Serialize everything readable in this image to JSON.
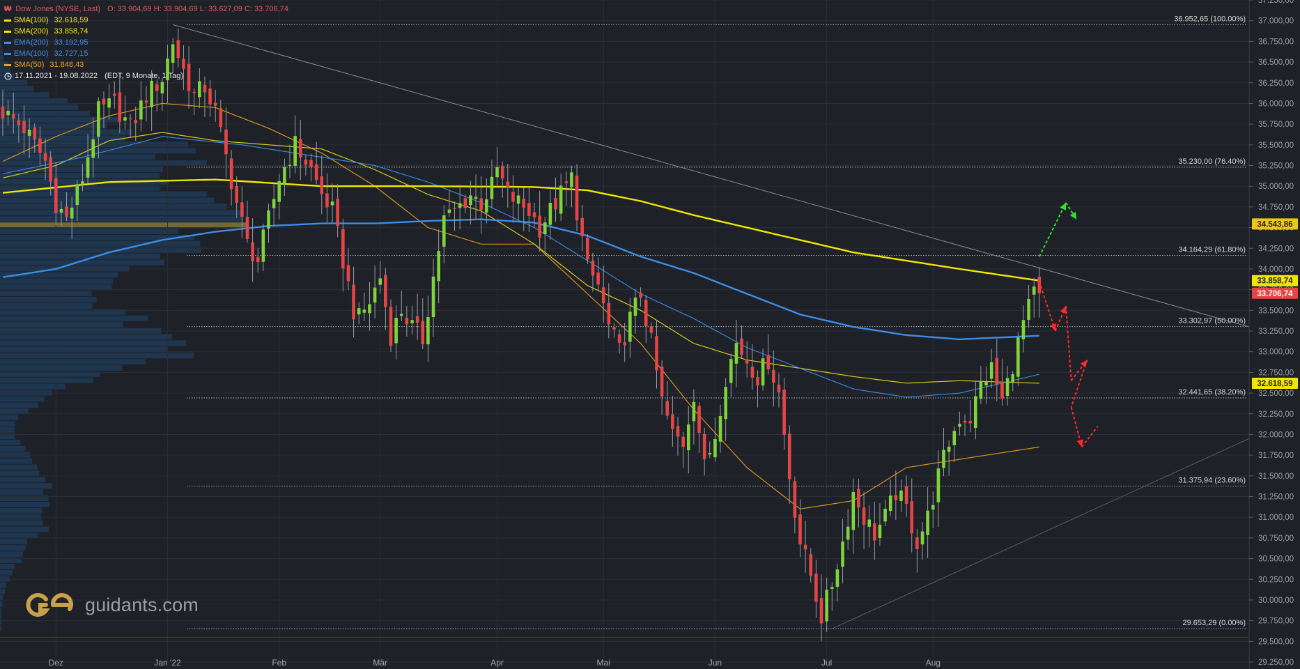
{
  "legend": {
    "title": "Dow Jones (NYSE, Last)",
    "title_icon": "₩",
    "ohlc": "O: 33.904,69  H: 33.904,69  L: 33.627,09  C: 33.706,74",
    "indicators": [
      {
        "label": "SMA(100)",
        "value": "32.618,59",
        "color": "#f2e600"
      },
      {
        "label": "SMA(200)",
        "value": "33.858,74",
        "color": "#f2e600"
      },
      {
        "label": "EMA(200)",
        "value": "33.192,95",
        "color": "#3a8ee6"
      },
      {
        "label": "EMA(100)",
        "value": "32.727,15",
        "color": "#3a8ee6"
      },
      {
        "label": "SMA(50)",
        "value": "31.848,43",
        "color": "#e6a21e"
      }
    ],
    "range_icon": "clock-icon",
    "range": "17.11.2021 - 19.08.2022",
    "range_note": "(EDT, 9 Monate, 1 Tag)"
  },
  "brand": {
    "name": "guidants.com",
    "icon": "guidants-logo-icon"
  },
  "chart_data": {
    "type": "candlestick",
    "x_range": [
      "2021-11-17",
      "2022-08-19"
    ],
    "ylim": [
      29250,
      37250
    ],
    "y_ticks": [
      29250,
      29500,
      29750,
      30000,
      30250,
      30500,
      30750,
      31000,
      31250,
      31500,
      31750,
      32000,
      32250,
      32500,
      32750,
      33000,
      33250,
      33500,
      33750,
      34000,
      34250,
      34500,
      34750,
      35000,
      35250,
      35500,
      35750,
      36000,
      36250,
      36500,
      36750,
      37000,
      37250
    ],
    "y_tick_labels": [
      "29.250,00",
      "29.500,00",
      "29.750,00",
      "30.000,00",
      "30.250,00",
      "30.500,00",
      "30.750,00",
      "31.000,00",
      "31.250,00",
      "31.500,00",
      "31.750,00",
      "32.000,00",
      "32.250,00",
      "32.500,00",
      "32.750,00",
      "33.000,00",
      "33.250,00",
      "33.500,00",
      "33.750,00",
      "34.000,00",
      "34.250,00",
      "34.500,00",
      "34.750,00",
      "35.000,00",
      "35.250,00",
      "35.500,00",
      "35.750,00",
      "36.000,00",
      "36.250,00",
      "36.500,00",
      "36.750,00",
      "37.000,00",
      "37.250,00"
    ],
    "x_ticks": [
      {
        "label": "Dez",
        "index": 10
      },
      {
        "label": "Jan '22",
        "index": 31
      },
      {
        "label": "Feb",
        "index": 52
      },
      {
        "label": "Mär",
        "index": 71
      },
      {
        "label": "Apr",
        "index": 93
      },
      {
        "label": "Mai",
        "index": 113
      },
      {
        "label": "Jun",
        "index": 134
      },
      {
        "label": "Jul",
        "index": 155
      },
      {
        "label": "Aug",
        "index": 175
      }
    ],
    "candle_count": 196,
    "close_path": [
      [
        0,
        35900
      ],
      [
        4,
        35700
      ],
      [
        8,
        35300
      ],
      [
        10,
        34800
      ],
      [
        12,
        34600
      ],
      [
        15,
        35100
      ],
      [
        18,
        35900
      ],
      [
        21,
        36000
      ],
      [
        24,
        35700
      ],
      [
        27,
        36100
      ],
      [
        30,
        36300
      ],
      [
        32,
        36750
      ],
      [
        34,
        36400
      ],
      [
        36,
        36100
      ],
      [
        38,
        36200
      ],
      [
        40,
        35900
      ],
      [
        42,
        35350
      ],
      [
        44,
        34800
      ],
      [
        46,
        34300
      ],
      [
        48,
        34100
      ],
      [
        50,
        34600
      ],
      [
        52,
        35100
      ],
      [
        55,
        35500
      ],
      [
        58,
        35200
      ],
      [
        60,
        34900
      ],
      [
        62,
        34700
      ],
      [
        64,
        34100
      ],
      [
        66,
        33500
      ],
      [
        67,
        33400
      ],
      [
        69,
        33600
      ],
      [
        71,
        33900
      ],
      [
        73,
        33200
      ],
      [
        75,
        33500
      ],
      [
        77,
        33300
      ],
      [
        79,
        33150
      ],
      [
        81,
        33900
      ],
      [
        83,
        34600
      ],
      [
        85,
        34700
      ],
      [
        88,
        34900
      ],
      [
        90,
        34800
      ],
      [
        92,
        35000
      ],
      [
        93,
        35200
      ],
      [
        95,
        34900
      ],
      [
        97,
        34800
      ],
      [
        99,
        34700
      ],
      [
        101,
        34500
      ],
      [
        103,
        34700
      ],
      [
        105,
        34900
      ],
      [
        107,
        35100
      ],
      [
        108,
        34700
      ],
      [
        110,
        34000
      ],
      [
        112,
        33800
      ],
      [
        114,
        33300
      ],
      [
        116,
        33000
      ],
      [
        118,
        33400
      ],
      [
        120,
        33700
      ],
      [
        122,
        33100
      ],
      [
        124,
        32400
      ],
      [
        126,
        32000
      ],
      [
        128,
        31900
      ],
      [
        130,
        32500
      ],
      [
        132,
        31600
      ],
      [
        134,
        32000
      ],
      [
        136,
        32700
      ],
      [
        138,
        33100
      ],
      [
        140,
        32900
      ],
      [
        142,
        32700
      ],
      [
        144,
        32900
      ],
      [
        146,
        32500
      ],
      [
        148,
        31500
      ],
      [
        150,
        30700
      ],
      [
        152,
        30300
      ],
      [
        154,
        29800
      ],
      [
        156,
        30200
      ],
      [
        158,
        30700
      ],
      [
        160,
        31300
      ],
      [
        162,
        31000
      ],
      [
        164,
        30800
      ],
      [
        166,
        31000
      ],
      [
        168,
        31300
      ],
      [
        170,
        31100
      ],
      [
        172,
        30700
      ],
      [
        174,
        31000
      ],
      [
        176,
        31500
      ],
      [
        178,
        31900
      ],
      [
        180,
        32200
      ],
      [
        182,
        32200
      ],
      [
        184,
        32600
      ],
      [
        186,
        32800
      ],
      [
        188,
        32400
      ],
      [
        190,
        32850
      ],
      [
        192,
        33350
      ],
      [
        194,
        33700
      ],
      [
        195,
        33706.74
      ]
    ],
    "sma200": [
      [
        0,
        34920
      ],
      [
        20,
        35050
      ],
      [
        40,
        35080
      ],
      [
        60,
        35000
      ],
      [
        80,
        35000
      ],
      [
        100,
        34990
      ],
      [
        110,
        34950
      ],
      [
        120,
        34820
      ],
      [
        130,
        34650
      ],
      [
        140,
        34500
      ],
      [
        150,
        34350
      ],
      [
        160,
        34200
      ],
      [
        170,
        34100
      ],
      [
        180,
        34000
      ],
      [
        195,
        33858.74
      ]
    ],
    "sma100": [
      [
        0,
        35100
      ],
      [
        10,
        35250
      ],
      [
        20,
        35550
      ],
      [
        30,
        35650
      ],
      [
        40,
        35550
      ],
      [
        50,
        35500
      ],
      [
        60,
        35450
      ],
      [
        70,
        35200
      ],
      [
        80,
        34900
      ],
      [
        90,
        34700
      ],
      [
        100,
        34300
      ],
      [
        110,
        33800
      ],
      [
        120,
        33500
      ],
      [
        130,
        33100
      ],
      [
        140,
        32900
      ],
      [
        150,
        32800
      ],
      [
        160,
        32700
      ],
      [
        170,
        32620
      ],
      [
        180,
        32650
      ],
      [
        195,
        32618.59
      ]
    ],
    "ema200": [
      [
        0,
        33900
      ],
      [
        10,
        34000
      ],
      [
        20,
        34200
      ],
      [
        30,
        34350
      ],
      [
        40,
        34450
      ],
      [
        50,
        34520
      ],
      [
        60,
        34550
      ],
      [
        70,
        34550
      ],
      [
        80,
        34580
      ],
      [
        90,
        34600
      ],
      [
        100,
        34560
      ],
      [
        110,
        34400
      ],
      [
        120,
        34150
      ],
      [
        130,
        33950
      ],
      [
        140,
        33700
      ],
      [
        150,
        33450
      ],
      [
        160,
        33300
      ],
      [
        170,
        33200
      ],
      [
        180,
        33150
      ],
      [
        195,
        33192.95
      ]
    ],
    "ema100": [
      [
        0,
        35150
      ],
      [
        15,
        35350
      ],
      [
        30,
        35600
      ],
      [
        45,
        35500
      ],
      [
        60,
        35350
      ],
      [
        70,
        35250
      ],
      [
        80,
        35050
      ],
      [
        90,
        34800
      ],
      [
        100,
        34500
      ],
      [
        110,
        34100
      ],
      [
        120,
        33700
      ],
      [
        130,
        33400
      ],
      [
        140,
        33050
      ],
      [
        150,
        32800
      ],
      [
        160,
        32550
      ],
      [
        170,
        32450
      ],
      [
        180,
        32500
      ],
      [
        195,
        32727.15
      ]
    ],
    "sma50": [
      [
        0,
        35300
      ],
      [
        10,
        35600
      ],
      [
        20,
        35850
      ],
      [
        30,
        36000
      ],
      [
        40,
        35950
      ],
      [
        50,
        35700
      ],
      [
        60,
        35400
      ],
      [
        70,
        35000
      ],
      [
        80,
        34500
      ],
      [
        90,
        34300
      ],
      [
        100,
        34300
      ],
      [
        110,
        33700
      ],
      [
        120,
        33100
      ],
      [
        130,
        32300
      ],
      [
        140,
        31600
      ],
      [
        150,
        31100
      ],
      [
        160,
        31200
      ],
      [
        170,
        31600
      ],
      [
        180,
        31700
      ],
      [
        195,
        31848.43
      ]
    ],
    "fibonacci": [
      {
        "price": 36952.65,
        "label": "36.952,65 (100.00%)"
      },
      {
        "price": 35230.0,
        "label": "35.230,00 (76.40%)"
      },
      {
        "price": 34164.29,
        "label": "34.164,29 (61.80%)"
      },
      {
        "price": 33302.97,
        "label": "33.302,97 (50.00%)"
      },
      {
        "price": 32441.65,
        "label": "32.441,65 (38.20%)"
      },
      {
        "price": 31375.94,
        "label": "31.375,94 (23.60%)"
      },
      {
        "price": 29653.29,
        "label": "29.653,29 (0.00%)"
      }
    ],
    "price_tags": [
      {
        "price": 34543.86,
        "label": "34.543,86",
        "color": "#f0c419"
      },
      {
        "price": 33858.74,
        "label": "33.858,74",
        "color": "#f2e600"
      },
      {
        "price": 33706.74,
        "label": "33.706,74",
        "color": "#e64545"
      },
      {
        "price": 32618.59,
        "label": "32.618,59",
        "color": "#f2e600"
      }
    ],
    "trendlines": [
      {
        "from": [
          32,
          36952
        ],
        "to": [
          240,
          33300
        ],
        "color": "#8a8d93"
      },
      {
        "from": [
          156,
          29653
        ],
        "to": [
          240,
          31950
        ],
        "color": "#5a5d63"
      }
    ],
    "scenario_up": [
      [
        195,
        34150
      ],
      [
        200,
        34800
      ],
      [
        202,
        34600
      ]
    ],
    "scenario_down": [
      [
        195,
        33850
      ],
      [
        198,
        33250
      ],
      [
        200,
        33550
      ],
      [
        201,
        32650
      ],
      [
        204,
        32900
      ],
      [
        201,
        32330
      ],
      [
        203,
        31850
      ],
      [
        206,
        32100
      ]
    ],
    "volume_profile_note": "horizontal volume-by-price histogram on left",
    "grid": true
  }
}
